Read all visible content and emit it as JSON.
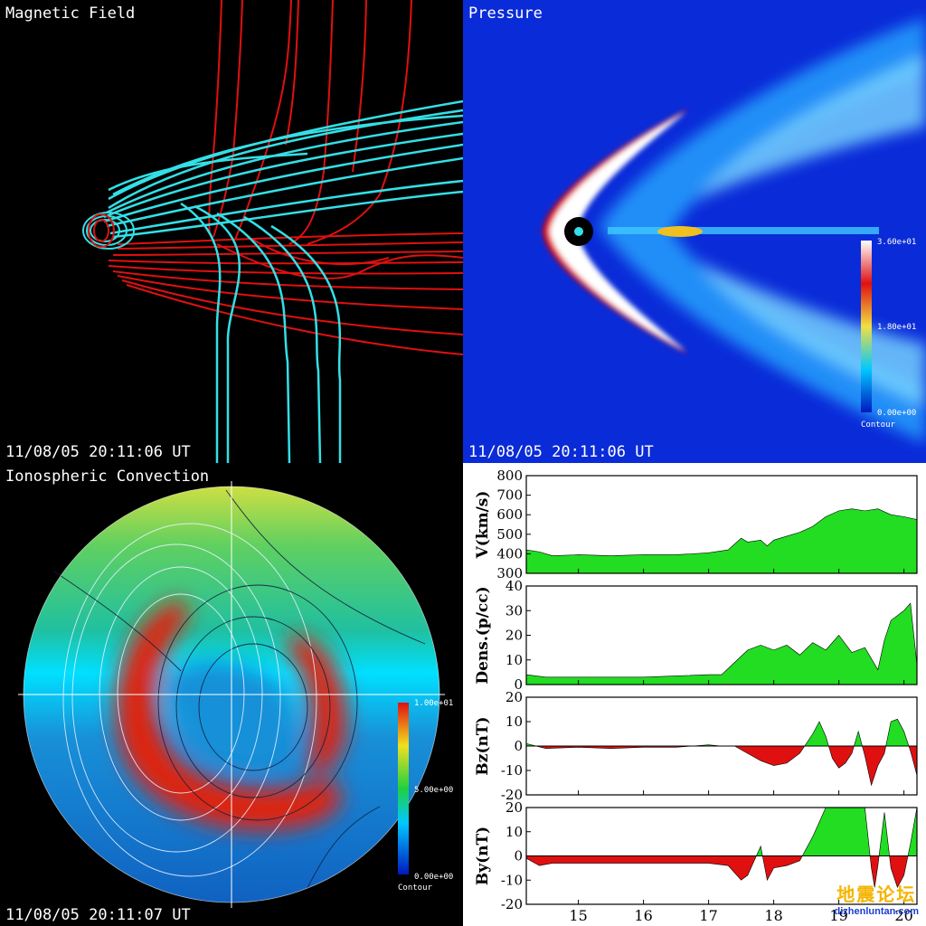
{
  "magnetic_field": {
    "title": "Magnetic Field",
    "timestamp": "11/08/05 20:11:06 UT",
    "colors": {
      "background": "#000000",
      "closed_lines": "#33e0e6",
      "open_lines": "#e01010"
    }
  },
  "pressure": {
    "title": "Pressure",
    "timestamp": "11/08/05 20:11:06 UT",
    "colorbar": {
      "max": "3.60e+01",
      "mid": "1.80e+01",
      "min": "0.00e+00",
      "label": "Contour"
    },
    "colors": {
      "background": "#0a2bd8",
      "peak": "#ffffff",
      "high": "#e01010"
    }
  },
  "ionosphere": {
    "title": "Ionospheric Convection",
    "timestamp": "11/08/05 20:11:07 UT",
    "colorbar": {
      "max": "1.00e+01",
      "mid": "5.00e+00",
      "min": "0.00e+00",
      "label": "Contour"
    }
  },
  "solar_wind": {
    "panels": [
      {
        "ylabel": "V(km/s)",
        "ticks": [
          "800",
          "700",
          "600",
          "500",
          "400",
          "300"
        ]
      },
      {
        "ylabel": "Dens.(p/cc)",
        "ticks": [
          "40",
          "30",
          "20",
          "10",
          "0"
        ]
      },
      {
        "ylabel": "Bz(nT)",
        "ticks": [
          "20",
          "10",
          "0",
          "-10",
          "-20"
        ]
      },
      {
        "ylabel": "By(nT)",
        "ticks": [
          "20",
          "10",
          "0",
          "-10",
          "-20"
        ]
      }
    ],
    "xticks": [
      "15",
      "16",
      "17",
      "18",
      "19",
      "20"
    ],
    "colors": {
      "positive": "#22dd22",
      "negative": "#e01010"
    }
  },
  "chart_data": [
    {
      "type": "area",
      "ylabel": "V(km/s)",
      "ylim": [
        300,
        800
      ],
      "xlim": [
        14.2,
        20.2
      ],
      "x": [
        14.2,
        14.4,
        14.6,
        15.0,
        15.5,
        16.0,
        16.5,
        17.0,
        17.3,
        17.5,
        17.6,
        17.8,
        17.9,
        18.0,
        18.2,
        18.4,
        18.6,
        18.8,
        19.0,
        19.2,
        19.4,
        19.6,
        19.8,
        20.0,
        20.2
      ],
      "values": [
        420,
        410,
        390,
        395,
        390,
        395,
        395,
        405,
        420,
        480,
        460,
        470,
        440,
        470,
        490,
        510,
        540,
        590,
        620,
        630,
        620,
        630,
        600,
        590,
        575
      ]
    },
    {
      "type": "area",
      "ylabel": "Dens.(p/cc)",
      "ylim": [
        0,
        40
      ],
      "xlim": [
        14.2,
        20.2
      ],
      "x": [
        14.2,
        14.5,
        15.0,
        15.5,
        16.0,
        16.5,
        17.0,
        17.2,
        17.4,
        17.6,
        17.8,
        18.0,
        18.2,
        18.4,
        18.6,
        18.8,
        19.0,
        19.2,
        19.4,
        19.6,
        19.7,
        19.8,
        20.0,
        20.1,
        20.2
      ],
      "values": [
        4,
        3,
        3,
        3,
        3,
        3.5,
        4,
        4,
        9,
        14,
        16,
        14,
        16,
        12,
        17,
        14,
        20,
        13,
        15,
        6,
        18,
        26,
        30,
        33,
        8
      ]
    },
    {
      "type": "area",
      "ylabel": "Bz(nT)",
      "ylim": [
        -20,
        20
      ],
      "xlim": [
        14.2,
        20.2
      ],
      "x": [
        14.2,
        14.5,
        15.0,
        15.5,
        16.0,
        16.5,
        17.0,
        17.2,
        17.4,
        17.6,
        17.8,
        18.0,
        18.2,
        18.4,
        18.6,
        18.7,
        18.8,
        18.9,
        19.0,
        19.1,
        19.2,
        19.3,
        19.4,
        19.5,
        19.6,
        19.7,
        19.8,
        19.9,
        20.0,
        20.1,
        20.2
      ],
      "values": [
        1,
        -1,
        -0.5,
        -1,
        -0.5,
        -0.5,
        0.5,
        0,
        0,
        -3,
        -6,
        -8,
        -7,
        -3,
        5,
        10,
        4,
        -5,
        -9,
        -7,
        -3,
        6,
        -4,
        -16,
        -8,
        -3,
        10,
        11,
        6,
        -2,
        -12
      ]
    },
    {
      "type": "area",
      "ylabel": "By(nT)",
      "ylim": [
        -20,
        20
      ],
      "xlim": [
        14.2,
        20.2
      ],
      "x": [
        14.2,
        14.4,
        14.6,
        15.0,
        15.5,
        16.0,
        16.5,
        17.0,
        17.3,
        17.5,
        17.6,
        17.7,
        17.8,
        17.9,
        18.0,
        18.2,
        18.4,
        18.6,
        18.8,
        19.0,
        19.2,
        19.4,
        19.5,
        19.55,
        19.6,
        19.7,
        19.8,
        19.9,
        20.0,
        20.1,
        20.2
      ],
      "values": [
        -1,
        -4,
        -3,
        -3,
        -3,
        -3,
        -3,
        -3,
        -4,
        -10,
        -8,
        -2,
        4,
        -10,
        -5,
        -4,
        -2,
        8,
        20,
        20,
        20,
        20,
        -5,
        -13,
        -4,
        18,
        -5,
        -13,
        -8,
        5,
        20
      ]
    }
  ]
}
